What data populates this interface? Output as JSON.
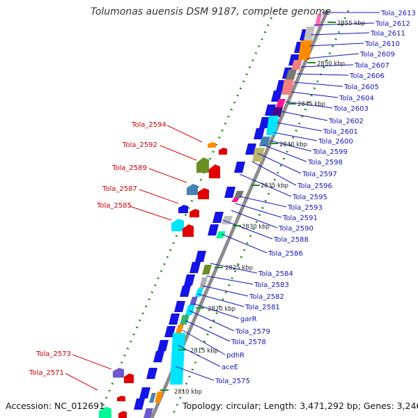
{
  "title": "Tolumonas auensis DSM 9187, complete genome",
  "accession": "Accession: NC_012691",
  "topology": "Topology: circular; Length: 3,471,292 bp; Genes: 3,246",
  "colors": {
    "backbone": "#8c8c8c",
    "dots": "#1a8f1a",
    "blue_gene": "#1414e6",
    "left_label": "#cc0000",
    "right_label": "#1414b4",
    "tick_text": "#222222"
  },
  "ticks": [
    {
      "label": "2855 kbp"
    },
    {
      "label": "2850 kbp"
    },
    {
      "label": "2845 kbp"
    },
    {
      "label": "2840 kbp"
    },
    {
      "label": "2835 kbp"
    },
    {
      "label": "2830 kbp"
    },
    {
      "label": "2825 kbp"
    },
    {
      "label": "2820 kbp"
    },
    {
      "label": "2815 kbp"
    },
    {
      "label": "2810 kbp"
    }
  ],
  "left_genes": [
    {
      "label": "Tola_2594"
    },
    {
      "label": "Tola_2592"
    },
    {
      "label": "Tola_2589"
    },
    {
      "label": "Tola_2587"
    },
    {
      "label": "Tola_2585"
    },
    {
      "label": "Tola_2573"
    },
    {
      "label": "Tola_2571"
    }
  ],
  "right_genes": [
    {
      "label": "Tola_2613"
    },
    {
      "label": "Tola_2612"
    },
    {
      "label": "Tola_2611"
    },
    {
      "label": "Tola_2610"
    },
    {
      "label": "Tola_2609"
    },
    {
      "label": "Tola_2607"
    },
    {
      "label": "Tola_2606"
    },
    {
      "label": "Tola_2605"
    },
    {
      "label": "Tola_2604"
    },
    {
      "label": "Tola_2603"
    },
    {
      "label": "Tola_2602"
    },
    {
      "label": "Tola_2601"
    },
    {
      "label": "Tola_2600"
    },
    {
      "label": "Tola_2599"
    },
    {
      "label": "Tola_2598"
    },
    {
      "label": "Tola_2597"
    },
    {
      "label": "Tola_2596"
    },
    {
      "label": "Tola_2595"
    },
    {
      "label": "Tola_2593"
    },
    {
      "label": "Tola_2591"
    },
    {
      "label": "Tola_2590"
    },
    {
      "label": "Tola_2588"
    },
    {
      "label": "Tola_2586"
    },
    {
      "label": "Tola_2584"
    },
    {
      "label": "Tola_2583"
    },
    {
      "label": "Tola_2582"
    },
    {
      "label": "Tola_2581"
    },
    {
      "label": "garR"
    },
    {
      "label": "Tola_2579"
    },
    {
      "label": "Tola_2578"
    },
    {
      "label": "pdhR"
    },
    {
      "label": "aceE"
    },
    {
      "label": "Tola_2575"
    }
  ]
}
